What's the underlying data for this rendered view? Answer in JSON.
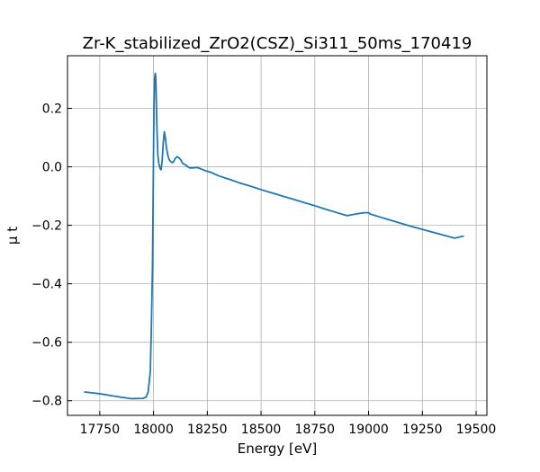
{
  "chart_data": {
    "type": "line",
    "title": "Zr-K_stabilized_ZrO2(CSZ)_Si311_50ms_170419",
    "xlabel": "Energy [eV]",
    "ylabel": "μ t",
    "xlim": [
      17600,
      19550
    ],
    "ylim": [
      -0.85,
      0.38
    ],
    "xticks": [
      17750,
      18000,
      18250,
      18500,
      18750,
      19000,
      19250,
      19500
    ],
    "yticks": [
      -0.8,
      -0.6,
      -0.4,
      -0.2,
      0.0,
      0.2
    ],
    "xtick_labels": [
      "17750",
      "18000",
      "18250",
      "18500",
      "18750",
      "19000",
      "19250",
      "19500"
    ],
    "ytick_labels": [
      "−0.8",
      "−0.6",
      "−0.4",
      "−0.2",
      "0.0",
      "0.2"
    ],
    "grid": true,
    "series_color": "#1f77b4",
    "series": [
      {
        "x": [
          17680,
          17750,
          17850,
          17900,
          17950,
          17965,
          17975,
          17985,
          17990,
          17995,
          17998,
          18000,
          18002,
          18005,
          18008,
          18010,
          18012,
          18015,
          18020,
          18025,
          18030,
          18035,
          18040,
          18045,
          18050,
          18055,
          18060,
          18065,
          18070,
          18075,
          18080,
          18085,
          18090,
          18095,
          18100,
          18110,
          18120,
          18130,
          18135,
          18140,
          18145,
          18150,
          18160,
          18170,
          18180,
          18190,
          18200,
          18210,
          18220,
          18230,
          18240,
          18250,
          18260,
          18280,
          18300,
          18320,
          18350,
          18400,
          18450,
          18500,
          18550,
          18600,
          18650,
          18700,
          18750,
          18800,
          18850,
          18900,
          18950,
          18980,
          19000,
          19010,
          19050,
          19100,
          19150,
          19200,
          19250,
          19300,
          19350,
          19400,
          19440
        ],
        "y": [
          -0.77,
          -0.776,
          -0.788,
          -0.793,
          -0.792,
          -0.788,
          -0.77,
          -0.7,
          -0.55,
          -0.35,
          -0.12,
          0.05,
          0.2,
          0.3,
          0.32,
          0.31,
          0.26,
          0.15,
          0.04,
          0.01,
          -0.005,
          -0.01,
          0.02,
          0.08,
          0.12,
          0.1,
          0.065,
          0.045,
          0.03,
          0.022,
          0.018,
          0.015,
          0.015,
          0.02,
          0.028,
          0.035,
          0.03,
          0.02,
          0.012,
          0.01,
          0.008,
          0.006,
          0.0,
          -0.004,
          -0.004,
          -0.003,
          -0.002,
          -0.004,
          -0.007,
          -0.01,
          -0.013,
          -0.015,
          -0.017,
          -0.023,
          -0.03,
          -0.035,
          -0.042,
          -0.055,
          -0.066,
          -0.078,
          -0.089,
          -0.1,
          -0.111,
          -0.122,
          -0.133,
          -0.145,
          -0.156,
          -0.167,
          -0.16,
          -0.157,
          -0.157,
          -0.162,
          -0.171,
          -0.182,
          -0.193,
          -0.204,
          -0.214,
          -0.224,
          -0.234,
          -0.244,
          -0.237
        ]
      }
    ]
  }
}
